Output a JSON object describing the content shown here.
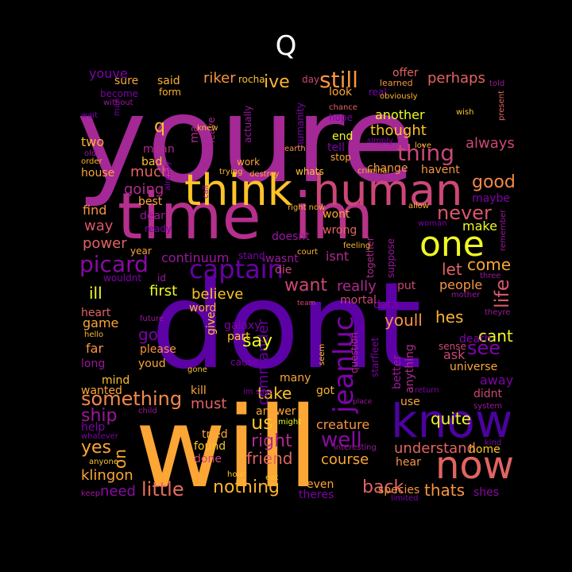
{
  "title": "Q",
  "palette": [
    "#f0f921",
    "#fca636",
    "#e16462",
    "#b12a90",
    "#6a00a8",
    "#0d0887"
  ],
  "words": [
    {
      "text": "youre",
      "color": "#a42896"
    },
    {
      "text": "dont",
      "color": "#5c01a6"
    },
    {
      "text": "will",
      "color": "#fca636"
    },
    {
      "text": "time",
      "color": "#b52f8c"
    },
    {
      "text": "im",
      "color": "#b83289"
    },
    {
      "text": "know",
      "color": "#4c02a1"
    },
    {
      "text": "think",
      "color": "#fdc328"
    },
    {
      "text": "human",
      "color": "#cc4778"
    },
    {
      "text": "now",
      "color": "#e16462"
    },
    {
      "text": "one",
      "color": "#f0f921"
    },
    {
      "text": "captain",
      "color": "#6a00a8"
    },
    {
      "text": "picard",
      "color": "#8b0aa5"
    },
    {
      "text": "jeanluc",
      "color": "#7e03a8"
    },
    {
      "text": "still",
      "color": "#f89540"
    },
    {
      "text": "thing",
      "color": "#cc4778"
    },
    {
      "text": "never",
      "color": "#d8576b"
    },
    {
      "text": "something",
      "color": "#f48849"
    },
    {
      "text": "little",
      "color": "#e76f5a"
    },
    {
      "text": "nothing",
      "color": "#fdb42f"
    },
    {
      "text": "friend",
      "color": "#e16462"
    },
    {
      "text": "well",
      "color": "#8b0aa5"
    },
    {
      "text": "right",
      "color": "#b12a90"
    },
    {
      "text": "ship",
      "color": "#9c179e"
    },
    {
      "text": "yes",
      "color": "#fca636"
    },
    {
      "text": "us",
      "color": "#fdc328"
    },
    {
      "text": "back",
      "color": "#e16462"
    },
    {
      "text": "thats",
      "color": "#f89540"
    },
    {
      "text": "course",
      "color": "#fca636"
    },
    {
      "text": "see",
      "color": "#7e03a8"
    },
    {
      "text": "life",
      "color": "#d8576b"
    },
    {
      "text": "good",
      "color": "#f48849"
    },
    {
      "text": "want",
      "color": "#cc4778"
    },
    {
      "text": "take",
      "color": "#fdc328"
    },
    {
      "text": "much",
      "color": "#e16462"
    },
    {
      "text": "going",
      "color": "#b12a90"
    },
    {
      "text": "ive",
      "color": "#fdb42f"
    },
    {
      "text": "riker",
      "color": "#f89540"
    },
    {
      "text": "perhaps",
      "color": "#e16462"
    },
    {
      "text": "thought",
      "color": "#fdc328"
    },
    {
      "text": "another",
      "color": "#f0f921"
    },
    {
      "text": "always",
      "color": "#cc4778"
    },
    {
      "text": "continuum",
      "color": "#9c179e"
    },
    {
      "text": "believe",
      "color": "#fdc328"
    },
    {
      "text": "commander",
      "color": "#6a00a8"
    },
    {
      "text": "go",
      "color": "#7e03a8"
    },
    {
      "text": "say",
      "color": "#f0f921"
    },
    {
      "text": "really",
      "color": "#b12a90"
    },
    {
      "text": "come",
      "color": "#fca636"
    },
    {
      "text": "people",
      "color": "#f89540"
    },
    {
      "text": "cant",
      "color": "#f0f921"
    },
    {
      "text": "let",
      "color": "#e16462"
    },
    {
      "text": "youll",
      "color": "#f89540"
    },
    {
      "text": "hes",
      "color": "#fdb42f"
    },
    {
      "text": "must",
      "color": "#e16462"
    },
    {
      "text": "quite",
      "color": "#f0f921"
    },
    {
      "text": "klingon",
      "color": "#fca636"
    },
    {
      "text": "need",
      "color": "#8b0aa5"
    },
    {
      "text": "understand",
      "color": "#e16462"
    },
    {
      "text": "creature",
      "color": "#f89540"
    },
    {
      "text": "way",
      "color": "#d8576b"
    },
    {
      "text": "power",
      "color": "#e16462"
    },
    {
      "text": "make",
      "color": "#f0f921"
    },
    {
      "text": "first",
      "color": "#f0f921"
    },
    {
      "text": "ill",
      "color": "#f0f921"
    },
    {
      "text": "on",
      "color": "#fca636"
    },
    {
      "text": "game",
      "color": "#fca636"
    },
    {
      "text": "heart",
      "color": "#e16462"
    },
    {
      "text": "done",
      "color": "#cc4778"
    },
    {
      "text": "found",
      "color": "#fdc328"
    },
    {
      "text": "tried",
      "color": "#fca636"
    },
    {
      "text": "hear",
      "color": "#f89540"
    },
    {
      "text": "home",
      "color": "#fdc328"
    },
    {
      "text": "shes",
      "color": "#8b0aa5"
    },
    {
      "text": "species",
      "color": "#f89540"
    },
    {
      "text": "theres",
      "color": "#7e03a8"
    },
    {
      "text": "even",
      "color": "#fca636"
    },
    {
      "text": "far",
      "color": "#f89540"
    },
    {
      "text": "please",
      "color": "#f89540"
    },
    {
      "text": "youd",
      "color": "#fca636"
    },
    {
      "text": "part",
      "color": "#fdc328"
    },
    {
      "text": "cause",
      "color": "#7e03a8"
    },
    {
      "text": "galaxy",
      "color": "#7e03a8"
    },
    {
      "text": "give",
      "color": "#fdc328"
    },
    {
      "text": "word",
      "color": "#fdb42f"
    },
    {
      "text": "kill",
      "color": "#fca636"
    },
    {
      "text": "mind",
      "color": "#fdc328"
    },
    {
      "text": "long",
      "color": "#9c179e"
    },
    {
      "text": "wanted",
      "color": "#fca636"
    },
    {
      "text": "help",
      "color": "#7e03a8"
    },
    {
      "text": "universe",
      "color": "#fca636"
    },
    {
      "text": "away",
      "color": "#7e03a8"
    },
    {
      "text": "didnt",
      "color": "#cc4778"
    },
    {
      "text": "ask",
      "color": "#cc4778"
    },
    {
      "text": "sense",
      "color": "#cc4778"
    },
    {
      "text": "death",
      "color": "#7e03a8"
    },
    {
      "text": "anything",
      "color": "#b12a90"
    },
    {
      "text": "starfleet",
      "color": "#7e03a8"
    },
    {
      "text": "question",
      "color": "#b12a90"
    },
    {
      "text": "data",
      "color": "#7e03a8"
    },
    {
      "text": "better",
      "color": "#9c179e"
    },
    {
      "text": "got",
      "color": "#fdb42f"
    },
    {
      "text": "use",
      "color": "#fca636"
    },
    {
      "text": "many",
      "color": "#fca636"
    },
    {
      "text": "answer",
      "color": "#fca636"
    },
    {
      "text": "might",
      "color": "#f0f921"
    },
    {
      "text": "mortal",
      "color": "#cc4778"
    },
    {
      "text": "put",
      "color": "#cc4778"
    },
    {
      "text": "isnt",
      "color": "#b12a90"
    },
    {
      "text": "wasnt",
      "color": "#9c179e"
    },
    {
      "text": "die",
      "color": "#cc4778"
    },
    {
      "text": "doesnt",
      "color": "#9c179e"
    },
    {
      "text": "wrong",
      "color": "#e16462"
    },
    {
      "text": "wont",
      "color": "#fca636"
    },
    {
      "text": "suppose",
      "color": "#9c179e"
    },
    {
      "text": "together",
      "color": "#b12a90"
    },
    {
      "text": "maybe",
      "color": "#7e03a8"
    },
    {
      "text": "find",
      "color": "#f89540"
    },
    {
      "text": "house",
      "color": "#fca636"
    },
    {
      "text": "two",
      "color": "#fdb42f"
    },
    {
      "text": "mean",
      "color": "#b12a90"
    },
    {
      "text": "bad",
      "color": "#fdc328"
    },
    {
      "text": "best",
      "color": "#fca636"
    },
    {
      "text": "dear",
      "color": "#9c179e"
    },
    {
      "text": "ready",
      "color": "#7e03a8"
    },
    {
      "text": "year",
      "color": "#fca636"
    },
    {
      "text": "q",
      "color": "#fdc328"
    },
    {
      "text": "may",
      "color": "#b12a90"
    },
    {
      "text": "leave",
      "color": "#b12a90"
    },
    {
      "text": "actually",
      "color": "#9c179e"
    },
    {
      "text": "idea",
      "color": "#b12a90"
    },
    {
      "text": "humanity",
      "color": "#7e03a8"
    },
    {
      "text": "sure",
      "color": "#fca636"
    },
    {
      "text": "said",
      "color": "#fdb42f"
    },
    {
      "text": "form",
      "color": "#fdb42f"
    },
    {
      "text": "become",
      "color": "#7e03a8"
    },
    {
      "text": "youve",
      "color": "#7e03a8"
    },
    {
      "text": "rocha",
      "color": "#fdc328"
    },
    {
      "text": "day",
      "color": "#cc4778"
    },
    {
      "text": "look",
      "color": "#fca636"
    },
    {
      "text": "real",
      "color": "#7e03a8"
    },
    {
      "text": "learned",
      "color": "#f89540"
    },
    {
      "text": "offer",
      "color": "#e16462"
    },
    {
      "text": "end",
      "color": "#f0f921"
    },
    {
      "text": "tell",
      "color": "#7e03a8"
    },
    {
      "text": "stop",
      "color": "#fca636"
    },
    {
      "text": "change",
      "color": "#f89540"
    },
    {
      "text": "havent",
      "color": "#f89540"
    },
    {
      "text": "whats",
      "color": "#fdc328"
    },
    {
      "text": "destroy",
      "color": "#fca636"
    },
    {
      "text": "work",
      "color": "#fca636"
    },
    {
      "text": "trying",
      "color": "#fdb42f"
    },
    {
      "text": "call",
      "color": "#9c179e"
    },
    {
      "text": "stand",
      "color": "#7e03a8"
    },
    {
      "text": "court",
      "color": "#fdb42f"
    },
    {
      "text": "feeling",
      "color": "#fdb42f"
    },
    {
      "text": "woman",
      "color": "#7e03a8"
    },
    {
      "text": "allow",
      "color": "#fdb42f"
    },
    {
      "text": "love",
      "color": "#fdb42f"
    },
    {
      "text": "criminal",
      "color": "#fdb42f"
    },
    {
      "text": "simply",
      "color": "#7e03a8"
    },
    {
      "text": "earth",
      "color": "#f89540"
    },
    {
      "text": "hope",
      "color": "#7e03a8"
    },
    {
      "text": "chance",
      "color": "#e16462"
    },
    {
      "text": "wish",
      "color": "#fdc328"
    },
    {
      "text": "obviously",
      "color": "#fdb42f"
    },
    {
      "text": "told",
      "color": "#9c179e"
    },
    {
      "text": "present",
      "color": "#e16462"
    },
    {
      "text": "knew",
      "color": "#fdc328"
    },
    {
      "text": "wait",
      "color": "#7e03a8"
    },
    {
      "text": "order",
      "color": "#fdb42f"
    },
    {
      "text": "old",
      "color": "#9c179e"
    },
    {
      "text": "without",
      "color": "#9c179e"
    },
    {
      "text": "man",
      "color": "#7e03a8"
    },
    {
      "text": "already",
      "color": "#7e03a8"
    },
    {
      "text": "right now",
      "color": "#fdb42f"
    },
    {
      "text": "id",
      "color": "#9c179e"
    },
    {
      "text": "wouldnt",
      "color": "#7e03a8"
    },
    {
      "text": "team",
      "color": "#cc4778"
    },
    {
      "text": "future",
      "color": "#9c179e"
    },
    {
      "text": "hello",
      "color": "#fdb42f"
    },
    {
      "text": "gone",
      "color": "#fdc328"
    },
    {
      "text": "im sure",
      "color": "#7e03a8"
    },
    {
      "text": "seem",
      "color": "#fdc328"
    },
    {
      "text": "child",
      "color": "#9c179e"
    },
    {
      "text": "whatever",
      "color": "#7e03a8"
    },
    {
      "text": "anyone",
      "color": "#fdc328"
    },
    {
      "text": "keep",
      "color": "#9c179e"
    },
    {
      "text": "eat",
      "color": "#fdc328"
    },
    {
      "text": "limited",
      "color": "#7e03a8"
    },
    {
      "text": "interesting",
      "color": "#9c179e"
    },
    {
      "text": "return",
      "color": "#7e03a8"
    },
    {
      "text": "kind",
      "color": "#7e03a8"
    },
    {
      "text": "place",
      "color": "#9c179e"
    },
    {
      "text": "system",
      "color": "#9c179e"
    },
    {
      "text": "theyre",
      "color": "#9c179e"
    },
    {
      "text": "mother",
      "color": "#9c179e"
    },
    {
      "text": "three",
      "color": "#9c179e"
    },
    {
      "text": "remember",
      "color": "#9c179e"
    },
    {
      "text": "hour",
      "color": "#fdc328"
    }
  ]
}
